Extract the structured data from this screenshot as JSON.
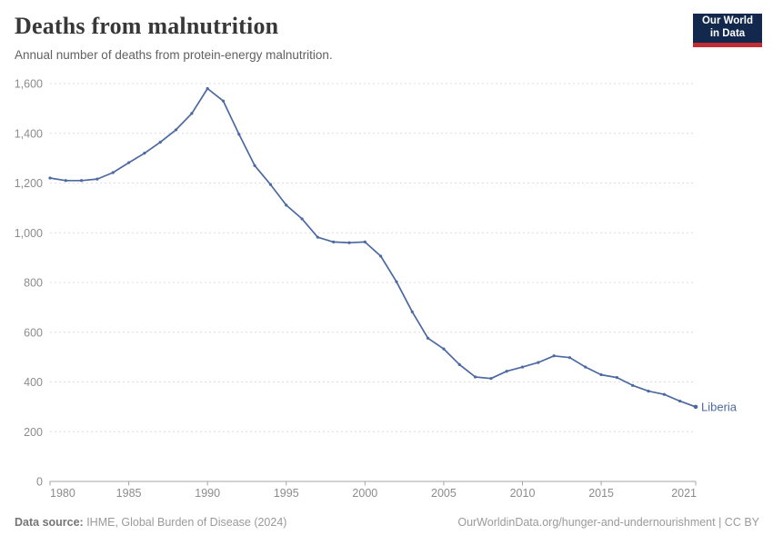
{
  "header": {
    "title": "Deaths from malnutrition",
    "subtitle": "Annual number of deaths from protein-energy malnutrition.",
    "logo": {
      "line1": "Our World",
      "line2": "in Data",
      "bg_color": "#12294d",
      "stripe_color": "#c12c35"
    }
  },
  "chart_data": {
    "type": "line",
    "title": "Deaths from malnutrition",
    "xlabel": "",
    "ylabel": "",
    "xlim": [
      1980,
      2021
    ],
    "ylim": [
      0,
      1600
    ],
    "x_ticks": [
      1980,
      1985,
      1990,
      1995,
      2000,
      2005,
      2010,
      2015,
      2021
    ],
    "y_ticks": [
      0,
      200,
      400,
      600,
      800,
      1000,
      1200,
      1400,
      1600
    ],
    "grid": "horizontal-dashed",
    "legend_position": "end-of-line label",
    "axis_color": "#a6a6a6",
    "grid_color": "#dcdcdc",
    "tick_label_color": "#8c8c8c",
    "series": [
      {
        "name": "Liberia",
        "color": "#4c69a1",
        "x": [
          1980,
          1981,
          1982,
          1983,
          1984,
          1985,
          1986,
          1987,
          1988,
          1989,
          1990,
          1991,
          1992,
          1993,
          1994,
          1995,
          1996,
          1997,
          1998,
          1999,
          2000,
          2001,
          2002,
          2003,
          2004,
          2005,
          2006,
          2007,
          2008,
          2009,
          2010,
          2011,
          2012,
          2013,
          2014,
          2015,
          2016,
          2017,
          2018,
          2019,
          2020,
          2021
        ],
        "values": [
          1220,
          1210,
          1210,
          1216,
          1242,
          1282,
          1320,
          1364,
          1414,
          1480,
          1580,
          1530,
          1396,
          1270,
          1194,
          1111,
          1056,
          982,
          963,
          960,
          963,
          906,
          803,
          682,
          576,
          533,
          470,
          420,
          414,
          443,
          460,
          478,
          505,
          498,
          460,
          429,
          418,
          386,
          363,
          350,
          323,
          300
        ]
      }
    ]
  },
  "footer": {
    "source_label": "Data source:",
    "source_text": " IHME, Global Burden of Disease (2024)",
    "attribution": "OurWorldinData.org/hunger-and-undernourishment | CC BY"
  }
}
